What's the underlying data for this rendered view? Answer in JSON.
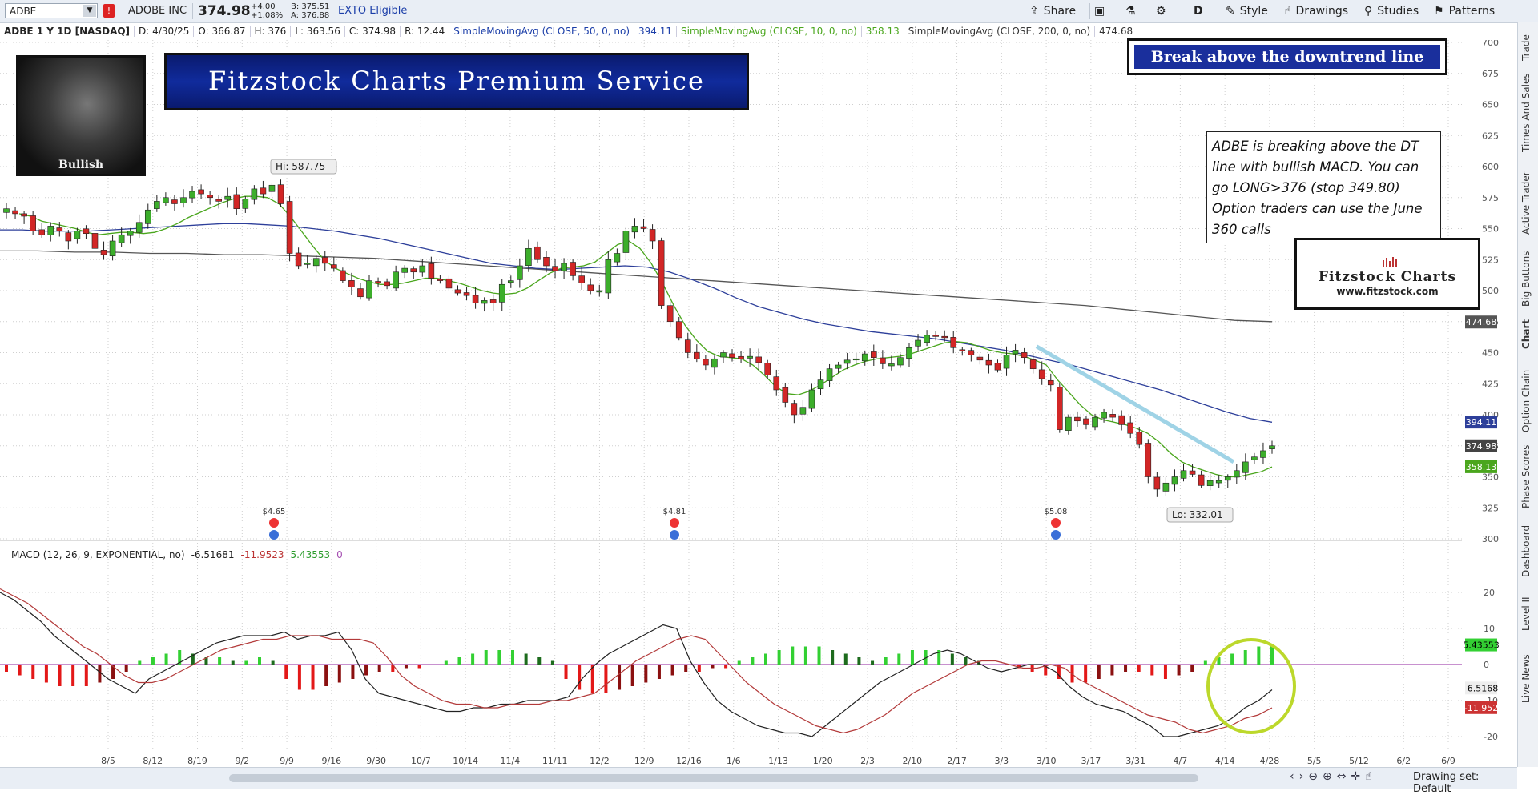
{
  "header": {
    "symbol": "ADBE",
    "name": "ADOBE INC",
    "price": "374.98",
    "change": "+4.00",
    "change_pct": "+1.08%",
    "bid": "B: 375.51",
    "ask": "A: 376.88",
    "exto": "EXTO Eligible",
    "alert_badge": "!"
  },
  "toolbar": {
    "share": "Share",
    "period": "D",
    "style": "Style",
    "drawings": "Drawings",
    "studies": "Studies",
    "patterns": "Patterns"
  },
  "study_bar": {
    "title": "ADBE 1 Y 1D [NASDAQ]",
    "date": "D: 4/30/25",
    "open": "O: 366.87",
    "high": "H: 376",
    "low": "L: 363.56",
    "close": "C: 374.98",
    "range": "R: 12.44",
    "sma50_label": "SimpleMovingAvg (CLOSE, 50, 0, no)",
    "sma50_value": "394.11",
    "sma10_label": "SimpleMovingAvg (CLOSE, 10, 0, no)",
    "sma10_value": "358.13",
    "sma200_label": "SimpleMovingAvg (CLOSE, 200, 0, no)",
    "sma200_value": "474.68"
  },
  "overlays": {
    "bull_caption": "Bullish",
    "banner": "Fitzstock Charts Premium Service",
    "tagline": "Break above the downtrend line",
    "note_lines": [
      "ADBE is breaking above the DT",
      "line with bullish MACD. You can",
      "go LONG>376 (stop 349.80)",
      "Option traders can use the June",
      "360 calls"
    ],
    "logo_title": "Fitzstock Charts",
    "logo_url": "www.fitzstock.com"
  },
  "right_tabs": [
    "Trade",
    "Times And Sales",
    "Active Trader",
    "Big Buttons",
    "Chart",
    "Option Chain",
    "Phase Scores",
    "Dashboard",
    "Level II",
    "Live News"
  ],
  "bottom": {
    "drawing_set": "Drawing set: Default"
  },
  "chart_data": {
    "type": "candlestick",
    "price_axis": {
      "ticks": [
        300,
        325,
        350,
        375,
        400,
        425,
        450,
        475,
        500,
        525,
        550,
        575,
        600,
        625,
        650,
        675,
        700
      ]
    },
    "x_ticks": [
      "8/5",
      "8/12",
      "8/19",
      "9/2",
      "9/9",
      "9/16",
      "9/30",
      "10/7",
      "10/14",
      "11/4",
      "11/11",
      "12/2",
      "12/9",
      "12/16",
      "1/6",
      "1/13",
      "1/20",
      "2/3",
      "2/10",
      "2/17",
      "3/3",
      "3/10",
      "3/17",
      "3/31",
      "4/7",
      "4/14",
      "4/28",
      "5/5",
      "5/12",
      "6/2",
      "6/9"
    ],
    "close_series": [
      566,
      562,
      560,
      548,
      545,
      552,
      548,
      540,
      548,
      546,
      534,
      529,
      540,
      545,
      548,
      555,
      565,
      572,
      575,
      570,
      575,
      580,
      578,
      575,
      572,
      576,
      566,
      574,
      582,
      578,
      585,
      570,
      530,
      520,
      522,
      526,
      522,
      518,
      508,
      503,
      495,
      508,
      506,
      504,
      515,
      518,
      515,
      520,
      510,
      508,
      502,
      498,
      496,
      490,
      492,
      490,
      505,
      508,
      520,
      534,
      525,
      520,
      516,
      522,
      512,
      506,
      500,
      500,
      525,
      530,
      548,
      552,
      550,
      540,
      488,
      475,
      462,
      450,
      445,
      440,
      445,
      450,
      446,
      445,
      447,
      442,
      432,
      420,
      410,
      400,
      406,
      420,
      428,
      437,
      440,
      444,
      445,
      449,
      446,
      441,
      441,
      446,
      454,
      460,
      464,
      463,
      462,
      454,
      452,
      448,
      444,
      440,
      436,
      448,
      452,
      446,
      437,
      429,
      424,
      388,
      398,
      395,
      392,
      398,
      402,
      398,
      392,
      385,
      376,
      350,
      340,
      345,
      350,
      355,
      352,
      343,
      347,
      347,
      350,
      355,
      362,
      366,
      371,
      375
    ],
    "sma10": [
      562,
      560,
      556,
      554,
      552,
      550,
      547,
      545,
      546,
      547,
      547,
      546,
      547,
      550,
      554,
      559,
      563,
      567,
      571,
      574,
      576,
      576,
      575,
      570,
      560,
      548,
      536,
      525,
      518,
      514,
      510,
      507,
      505,
      505,
      506,
      508,
      510,
      510,
      508,
      506,
      503,
      500,
      498,
      497,
      498,
      502,
      508,
      514,
      518,
      519,
      520,
      523,
      530,
      537,
      540,
      534,
      522,
      506,
      488,
      472,
      460,
      451,
      447,
      446,
      445,
      440,
      432,
      423,
      417,
      416,
      419,
      424,
      430,
      436,
      440,
      443,
      445,
      446,
      447,
      449,
      452,
      455,
      458,
      459,
      458,
      455,
      452,
      450,
      449,
      447,
      444,
      440,
      428,
      418,
      408,
      400,
      396,
      394,
      392,
      389,
      385,
      378,
      369,
      362,
      358,
      355,
      352,
      350,
      350,
      352,
      354,
      358
    ],
    "sma50": [
      549,
      549,
      548,
      548,
      548,
      549,
      550,
      551,
      552,
      553,
      554,
      554,
      553,
      552,
      550,
      548,
      545,
      542,
      538,
      534,
      530,
      526,
      522,
      520,
      518,
      517,
      518,
      519,
      520,
      519,
      515,
      509,
      502,
      494,
      487,
      482,
      477,
      473,
      470,
      467,
      465,
      463,
      461,
      458,
      455,
      452,
      448,
      444,
      440,
      435,
      430,
      425,
      420,
      414,
      408,
      402,
      397,
      394
    ],
    "sma200": [
      532,
      532,
      531,
      531,
      530,
      530,
      529,
      529,
      528,
      527,
      526,
      524,
      522,
      520,
      518,
      516,
      514,
      512,
      510,
      508,
      506,
      504,
      502,
      500,
      498,
      496,
      494,
      492,
      490,
      488,
      485,
      482,
      479,
      476,
      475
    ],
    "annotations": {
      "high_label": "Hi: 587.75",
      "low_label": "Lo: 332.01",
      "dividends": [
        "$4.65",
        "$4.81",
        "$5.08"
      ],
      "price_labels": {
        "sma200": "474.68",
        "sma50": "394.11",
        "last": "374.98",
        "sma10": "358.13"
      }
    },
    "macd": {
      "label": "MACD (12, 26, 9, EXPONENTIAL, no)",
      "value": "-6.51681",
      "avg": "-11.9523",
      "diff": "5.43553",
      "zero": "0",
      "ticks": [
        -20,
        -10,
        0,
        10,
        20
      ],
      "price_labels": {
        "diff": "5.43553",
        "value": "-6.5168",
        "avg": "-11.952"
      },
      "macd_line": [
        20,
        18,
        15,
        12,
        8,
        5,
        2,
        -1,
        -4,
        -6,
        -8,
        -4,
        -2,
        0,
        2,
        4,
        6,
        7,
        8,
        8,
        8,
        9,
        7,
        8,
        8,
        9,
        4,
        -4,
        -8,
        -9,
        -10,
        -11,
        -12,
        -13,
        -13,
        -12,
        -12,
        -11,
        -11,
        -10,
        -10,
        -10,
        -9,
        -4,
        0,
        3,
        5,
        7,
        9,
        11,
        10,
        1,
        -5,
        -10,
        -13,
        -15,
        -17,
        -18,
        -19,
        -19,
        -20,
        -17,
        -14,
        -11,
        -8,
        -5,
        -3,
        -1,
        1,
        3,
        4,
        3,
        1,
        -1,
        -2,
        -1,
        0,
        0,
        -2,
        -6,
        -9,
        -11,
        -12,
        -13,
        -15,
        -17,
        -20,
        -20,
        -19,
        -18,
        -17,
        -15,
        -12,
        -10,
        -7
      ],
      "signal_line": [
        21,
        19,
        17,
        14,
        11,
        8,
        5,
        3,
        0,
        -3,
        -5,
        -5,
        -4,
        -2,
        0,
        2,
        4,
        5,
        6,
        7,
        7,
        8,
        8,
        8,
        7,
        7,
        7,
        6,
        2,
        -3,
        -6,
        -8,
        -10,
        -11,
        -11,
        -12,
        -12,
        -11,
        -11,
        -11,
        -10,
        -10,
        -9,
        -8,
        -5,
        -2,
        1,
        3,
        5,
        7,
        8,
        7,
        3,
        -1,
        -5,
        -8,
        -11,
        -13,
        -15,
        -17,
        -18,
        -19,
        -18,
        -16,
        -14,
        -11,
        -8,
        -6,
        -4,
        -2,
        0,
        1,
        1,
        0,
        -1,
        -1,
        0,
        -1,
        -4,
        -6,
        -8,
        -10,
        -12,
        -14,
        -15,
        -16,
        -18,
        -19,
        -18,
        -17,
        -15,
        -14,
        -12
      ],
      "histogram": [
        -2,
        -3,
        -4,
        -5,
        -6,
        -6,
        -6,
        -5,
        -4,
        -2,
        1,
        2,
        3,
        4,
        3,
        2,
        2,
        1,
        1,
        2,
        1,
        -4,
        -7,
        -7,
        -6,
        -5,
        -4,
        -3,
        -2,
        -2,
        -1,
        -1,
        0,
        1,
        2,
        3,
        4,
        4,
        4,
        3,
        2,
        1,
        -4,
        -7,
        -8,
        -8,
        -7,
        -6,
        -5,
        -4,
        -3,
        -2,
        -2,
        -1,
        -1,
        1,
        2,
        3,
        4,
        5,
        5,
        5,
        4,
        3,
        2,
        1,
        2,
        3,
        4,
        4,
        4,
        3,
        2,
        1,
        0,
        0,
        -1,
        -2,
        -3,
        -4,
        -5,
        -5,
        -4,
        -3,
        -2,
        -2,
        -3,
        -4,
        -3,
        -2,
        1,
        2,
        3,
        4,
        5,
        5
      ]
    }
  }
}
